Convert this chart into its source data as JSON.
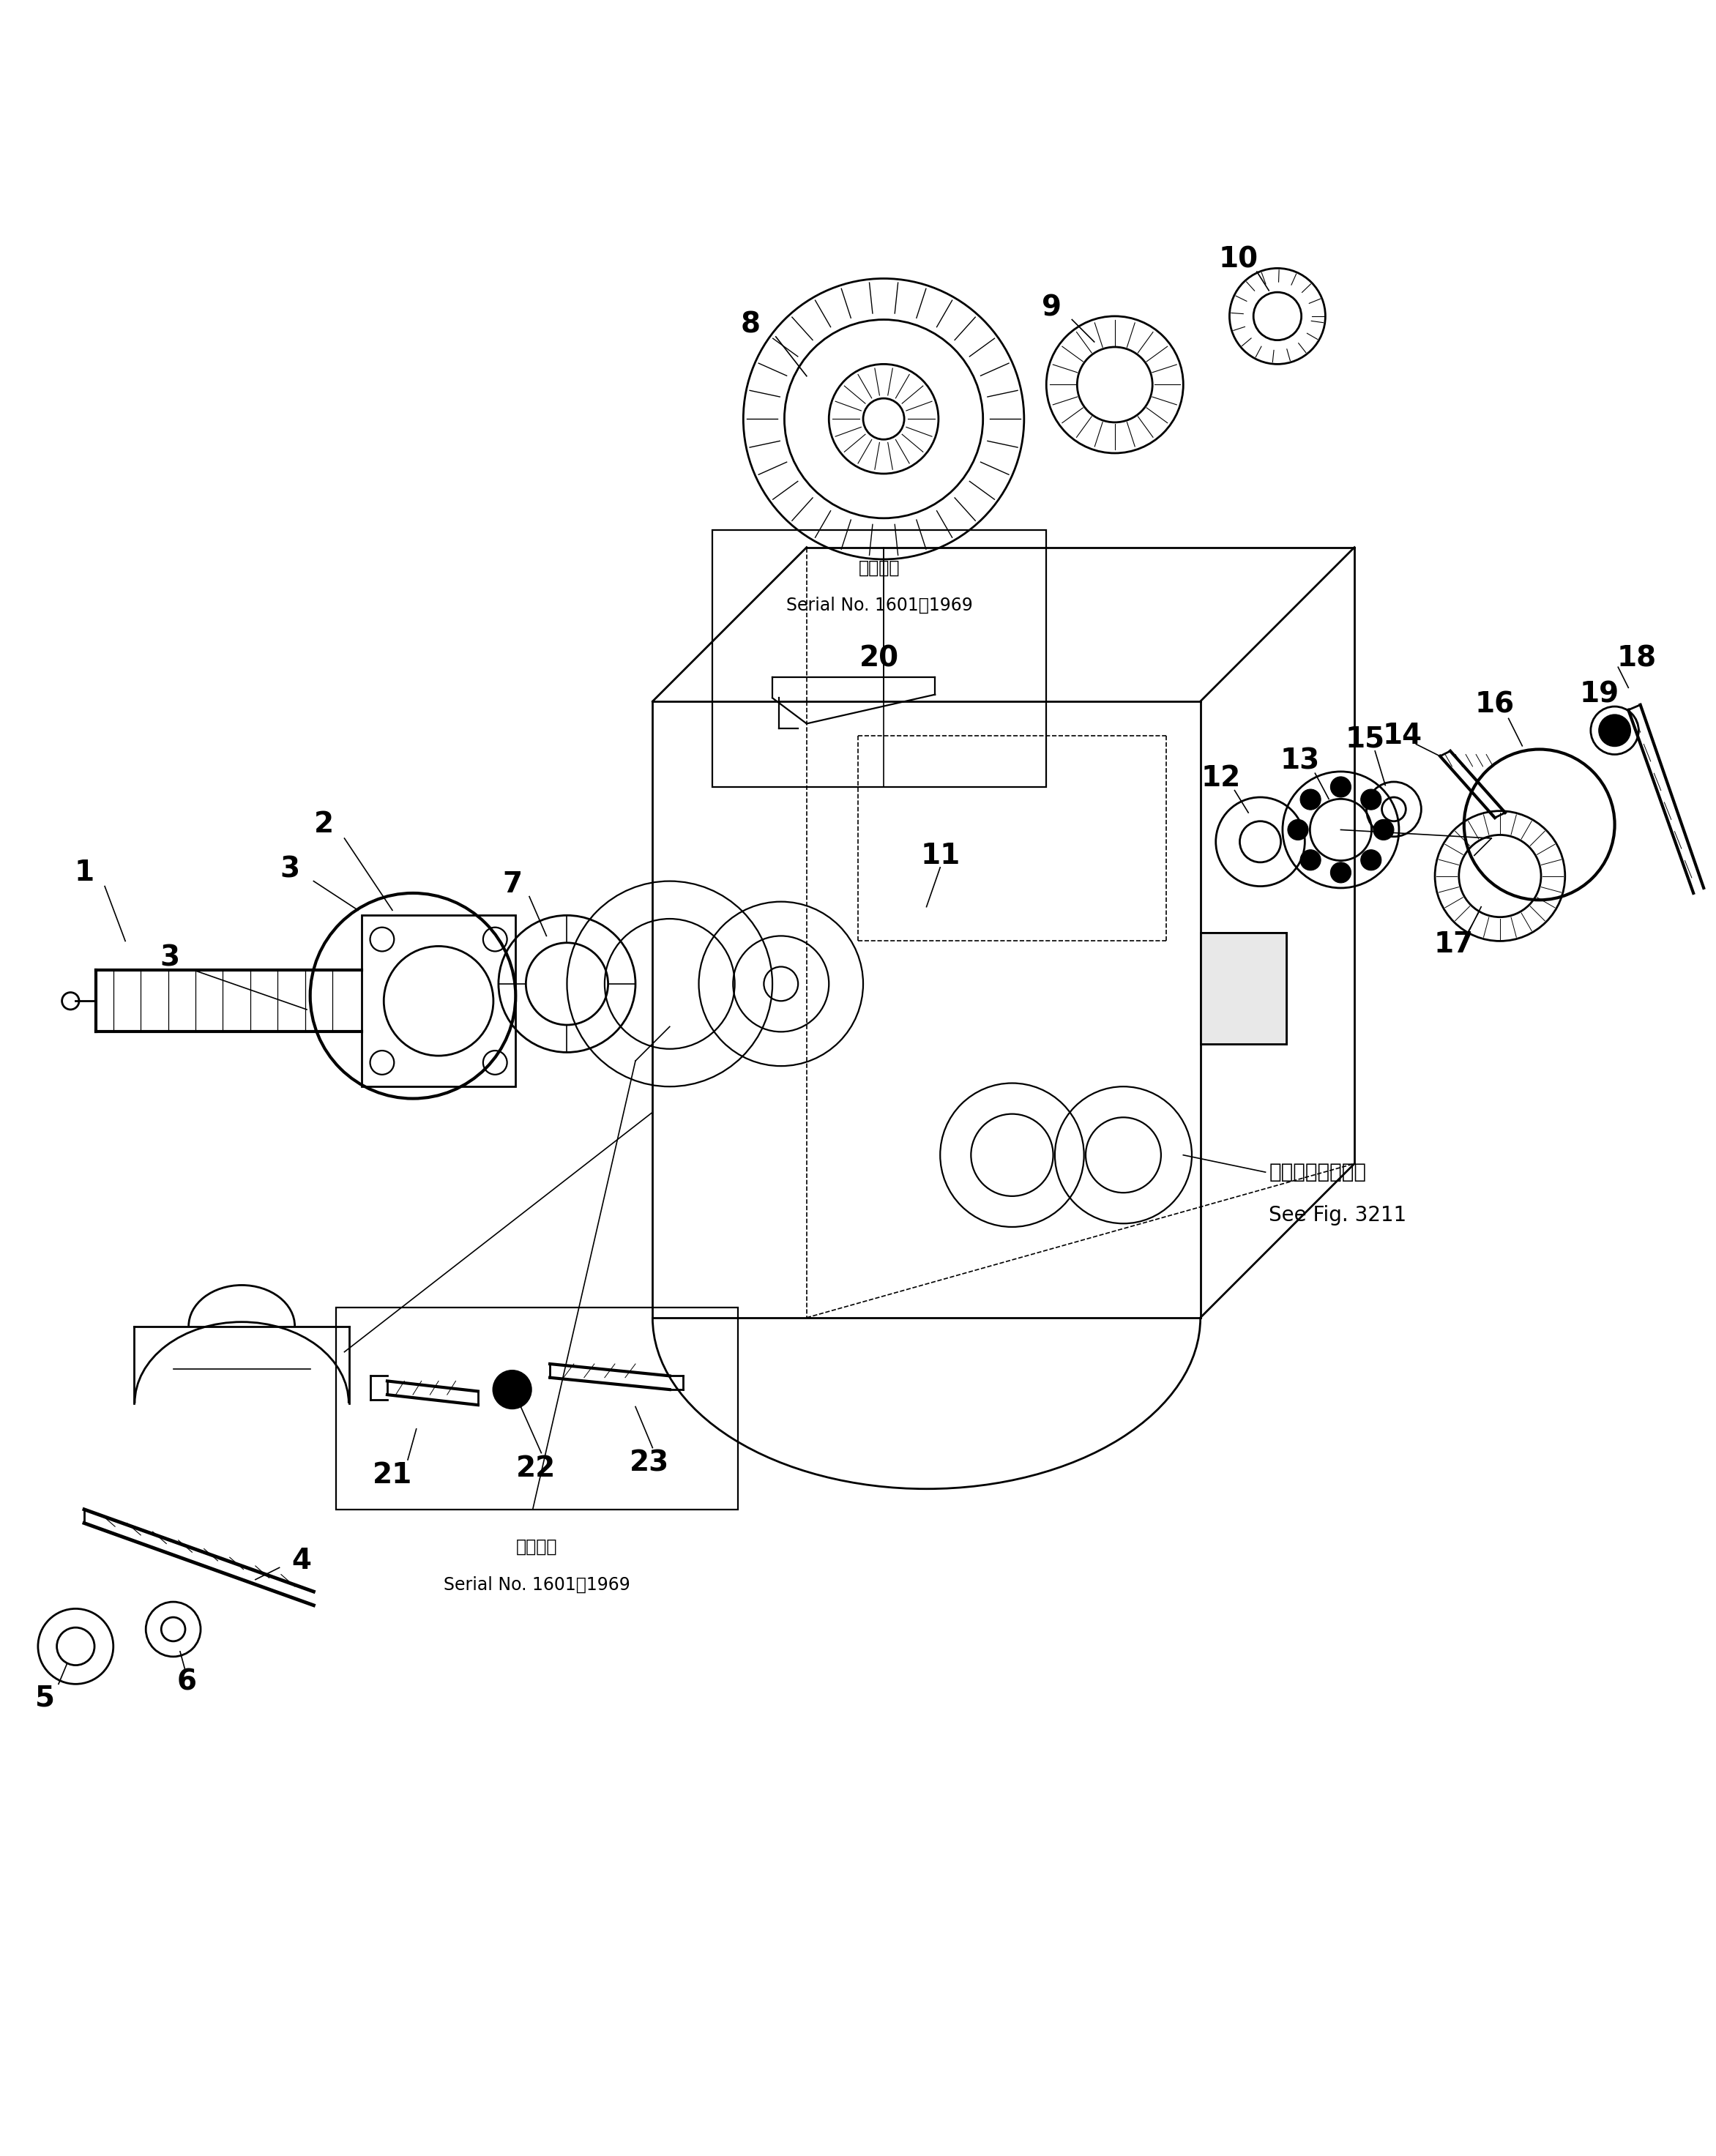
{
  "bg_color": "#ffffff",
  "line_color": "#000000",
  "fig_width": 23.44,
  "fig_height": 29.45,
  "serial_box1_text1": "適用号機",
  "serial_box1_text2": "Serial No. 1601～1969",
  "serial_box2_text1": "適用号機",
  "serial_box2_text2": "Serial No. 1601～1969",
  "ref_text1": "第３２１１図参照",
  "ref_text2": "See Fig. 3211",
  "label_fontsize": 28,
  "annotation_fontsize": 22
}
